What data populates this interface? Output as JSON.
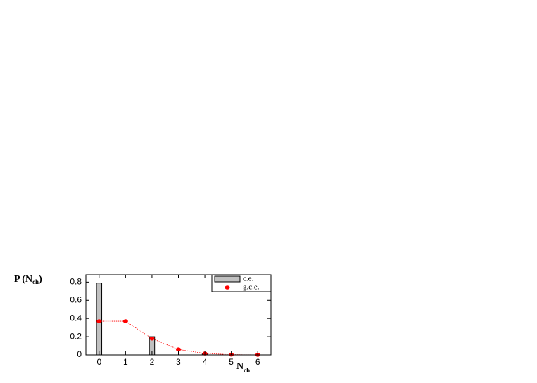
{
  "chart_data": {
    "type": "bar",
    "y_label": {
      "text": "P (N",
      "sub": "ch",
      "tail": ")"
    },
    "x_label": {
      "text": "N",
      "sub": "ch"
    },
    "x": [
      0,
      1,
      2,
      3,
      4,
      5,
      6
    ],
    "series": [
      {
        "name": "c.e.",
        "type": "bar",
        "color": "#c0c0c0",
        "values": [
          0.79,
          0,
          0.2,
          0,
          0.01,
          0,
          0
        ]
      },
      {
        "name": "g.c.e.",
        "type": "line",
        "color": "#ff0000",
        "values": [
          0.37,
          0.37,
          0.18,
          0.06,
          0.015,
          0.003,
          0.0005
        ]
      }
    ],
    "xlim": [
      -0.5,
      6.5
    ],
    "xticks": [
      0,
      1,
      2,
      3,
      4,
      5,
      6
    ],
    "ylim": [
      0,
      0.88
    ],
    "yticks": [
      0,
      0.2,
      0.4,
      0.6,
      0.8
    ],
    "legend": "top-right"
  }
}
